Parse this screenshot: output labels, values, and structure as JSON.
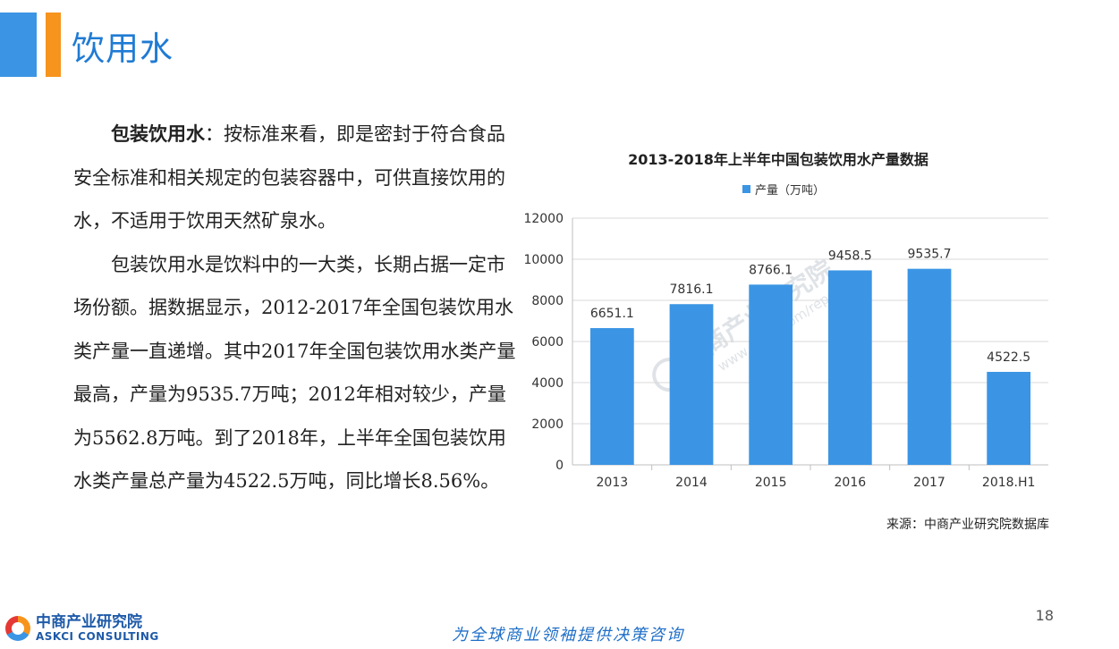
{
  "page": {
    "title": "饮用水",
    "page_number": "18",
    "slogan": "为全球商业领袖提供决策咨询",
    "logo_cn": "中商产业研究院",
    "logo_en": "ASKCI CONSULTING",
    "accent_colors": {
      "blue": "#3b95e4",
      "orange": "#f7941d"
    }
  },
  "body": {
    "p1_lead": "包装饮用水",
    "p1_text": "：按标准来看，即是密封于符合食品安全标准和相关规定的包装容器中，可供直接饮用的水，不适用于饮用天然矿泉水。",
    "p2_text": "包装饮用水是饮料中的一大类，长期占据一定市场份额。据数据显示，2012-2017年全国包装饮用水类产量一直递增。其中2017年全国包装饮用水类产量最高，产量为9535.7万吨；2012年相对较少，产量为5562.8万吨。到了2018年，上半年全国包装饮用水类产量总产量为4522.5万吨，同比增长8.56%。"
  },
  "chart_data": {
    "type": "bar",
    "title": "2013-2018年上半年中国包装饮用水产量数据",
    "categories": [
      "2013",
      "2014",
      "2015",
      "2016",
      "2017",
      "2018.H1"
    ],
    "series": [
      {
        "name": "产量（万吨）",
        "values": [
          6651.1,
          7816.1,
          8766.1,
          9458.5,
          9535.7,
          4522.5
        ],
        "color": "#3b95e4"
      }
    ],
    "ylim": [
      0,
      12000
    ],
    "yticks": [
      "0",
      "2000",
      "4000",
      "6000",
      "8000",
      "10000",
      "12000"
    ],
    "data_labels": [
      "6651.1",
      "7816.1",
      "8766.1",
      "9458.5",
      "9535.7",
      "4522.5"
    ],
    "grid": true,
    "legend_position": "top",
    "source": "来源：中商产业研究院数据库"
  },
  "watermark": {
    "text": "中商产业研究院",
    "url": "www.askci.com/reports/"
  }
}
